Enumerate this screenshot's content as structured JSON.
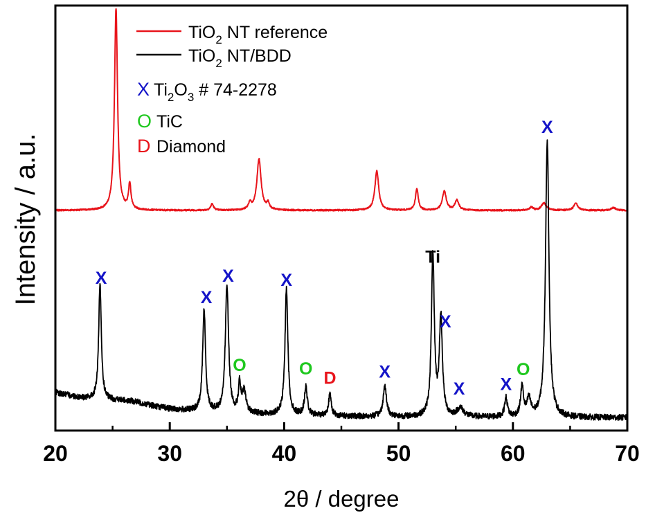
{
  "chart_data": {
    "type": "line",
    "xlabel": "2θ / degree",
    "ylabel": "Intensity / a.u.",
    "xlim": [
      20,
      70
    ],
    "x_ticks": [
      "20",
      "30",
      "40",
      "50",
      "60",
      "70"
    ],
    "ylim": [
      0,
      100
    ],
    "y_ticks_labeled": false,
    "legend_position": "top-left",
    "legend": [
      {
        "series": 0,
        "pre": "TiO",
        "sub": "2",
        "post": " NT reference",
        "color": "#e8141b"
      },
      {
        "series": 1,
        "pre": "TiO",
        "sub": "2",
        "post": " NT/BDD",
        "color": "#000000"
      }
    ],
    "marker_legend": [
      {
        "symbol": "X",
        "symbol_color": "#1414c8",
        "pre": "Ti",
        "sub1": "2",
        "mid": "O",
        "sub2": "3",
        "post": " # 74-2278"
      },
      {
        "symbol": "O",
        "symbol_color": "#1ec81e",
        "text": "TiC"
      },
      {
        "symbol": "D",
        "symbol_color": "#e8141b",
        "text": "Diamond"
      }
    ],
    "series": [
      {
        "name": "TiO2 NT reference",
        "color": "#e8141b",
        "baseline": 51.8,
        "peaks": [
          [
            25.3,
            47.5,
            0.16
          ],
          [
            26.5,
            6.0,
            0.13
          ],
          [
            33.7,
            1.5,
            0.15
          ],
          [
            37.0,
            1.5,
            0.15
          ],
          [
            37.8,
            12.0,
            0.22
          ],
          [
            38.6,
            1.5,
            0.14
          ],
          [
            48.1,
            9.3,
            0.2
          ],
          [
            51.6,
            5.0,
            0.15
          ],
          [
            54.0,
            4.5,
            0.2
          ],
          [
            55.1,
            2.4,
            0.2
          ],
          [
            61.6,
            0.7,
            0.2
          ],
          [
            62.7,
            1.7,
            0.25
          ],
          [
            65.5,
            1.8,
            0.2
          ],
          [
            68.8,
            0.6,
            0.25
          ]
        ]
      },
      {
        "name": "TiO2 NT/BDD",
        "color": "#000000",
        "baseline": 3.0,
        "peaks": [
          [
            23.9,
            27.0,
            0.14
          ],
          [
            33.0,
            24.0,
            0.15
          ],
          [
            35.0,
            30.0,
            0.17
          ],
          [
            36.1,
            6.5,
            0.12
          ],
          [
            36.5,
            5.0,
            0.2
          ],
          [
            40.2,
            30.0,
            0.15
          ],
          [
            41.9,
            6.5,
            0.15
          ],
          [
            44.0,
            5.0,
            0.15
          ],
          [
            48.8,
            7.0,
            0.18
          ],
          [
            53.0,
            38.0,
            0.15
          ],
          [
            53.7,
            23.0,
            0.16
          ],
          [
            55.4,
            2.0,
            0.35
          ],
          [
            59.4,
            4.5,
            0.15
          ],
          [
            60.8,
            7.0,
            0.15
          ],
          [
            61.4,
            4.0,
            0.2
          ],
          [
            63.0,
            65.0,
            0.18
          ]
        ]
      }
    ],
    "annotations": [
      {
        "text": "X",
        "x": 24.0,
        "y": 34.5,
        "color": "#1414c8"
      },
      {
        "text": "X",
        "x": 33.2,
        "y": 30.0,
        "color": "#1414c8"
      },
      {
        "text": "X",
        "x": 35.1,
        "y": 35.0,
        "color": "#1414c8"
      },
      {
        "text": "O",
        "x": 36.1,
        "y": 14.0,
        "color": "#1ec81e"
      },
      {
        "text": "X",
        "x": 40.2,
        "y": 34.0,
        "color": "#1414c8"
      },
      {
        "text": "O",
        "x": 41.9,
        "y": 13.2,
        "color": "#1ec81e"
      },
      {
        "text": "D",
        "x": 44.0,
        "y": 11.0,
        "color": "#e8141b"
      },
      {
        "text": "X",
        "x": 48.8,
        "y": 12.5,
        "color": "#1414c8"
      },
      {
        "text": "Ti",
        "x": 53.0,
        "y": 39.5,
        "color": "#000000"
      },
      {
        "text": "X",
        "x": 54.1,
        "y": 24.3,
        "color": "#1414c8"
      },
      {
        "text": "X",
        "x": 55.3,
        "y": 8.5,
        "color": "#1414c8"
      },
      {
        "text": "X",
        "x": 59.4,
        "y": 9.5,
        "color": "#1414c8"
      },
      {
        "text": "O",
        "x": 60.9,
        "y": 13.0,
        "color": "#1ec81e"
      },
      {
        "text": "X",
        "x": 63.0,
        "y": 70.0,
        "color": "#1414c8"
      }
    ]
  }
}
